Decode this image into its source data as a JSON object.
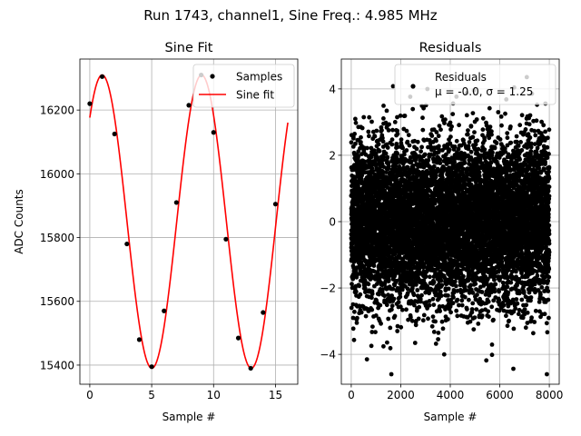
{
  "figure": {
    "suptitle": "Run 1743, channel1, Sine Freq.: 4.985 MHz"
  },
  "chart_data": [
    {
      "type": "line",
      "title": "Sine Fit",
      "xlabel": "Sample #",
      "ylabel": "ADC Counts",
      "xlim": [
        -0.8,
        16.8
      ],
      "ylim": [
        15340,
        16360
      ],
      "xticks": [
        0,
        5,
        10,
        15
      ],
      "yticks": [
        15400,
        15600,
        15800,
        16000,
        16200
      ],
      "grid": true,
      "legend_position": "top-right",
      "samples": {
        "name": "Samples",
        "color": "#000000",
        "x": [
          0,
          1,
          2,
          3,
          4,
          5,
          6,
          7,
          8,
          9,
          10,
          11,
          12,
          13,
          14,
          15
        ],
        "y": [
          16220,
          16305,
          16125,
          15780,
          15480,
          15395,
          15570,
          15910,
          16215,
          16310,
          16130,
          15795,
          15485,
          15390,
          15565,
          15905
        ]
      },
      "fit": {
        "name": "Sine fit",
        "color": "#ff0000",
        "x_range": [
          0,
          16
        ],
        "amplitude": 460,
        "offset": 15850,
        "period": 8.03,
        "peak_x": 1.0
      }
    },
    {
      "type": "scatter",
      "title": "Residuals",
      "xlabel": "Sample #",
      "ylabel": "",
      "xlim": [
        -400,
        8400
      ],
      "ylim": [
        -4.9,
        4.9
      ],
      "xticks": [
        0,
        2000,
        4000,
        6000,
        8000
      ],
      "yticks": [
        -4,
        -2,
        0,
        2,
        4
      ],
      "grid": true,
      "legend_position": "top-right",
      "legend": {
        "name": "Residuals",
        "stats": "μ = -0.0, σ = 1.25"
      },
      "series": {
        "name": "Residuals",
        "color": "#000000",
        "n_points": 8000,
        "mean": 0.0,
        "std": 1.25,
        "x_range": [
          0,
          7999
        ]
      }
    }
  ]
}
